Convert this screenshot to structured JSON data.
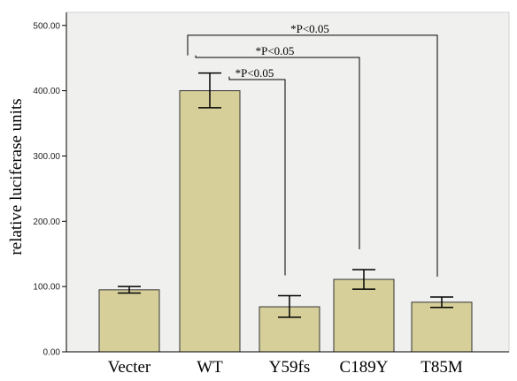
{
  "colors": {
    "plot_bg": "#f0f0ef",
    "bar_fill": "#d6cf9a",
    "bar_stroke": "#333333",
    "axis": "#000000",
    "error_bar": "#000000",
    "bracket": "#000000"
  },
  "chart_data": {
    "type": "bar",
    "title": "",
    "xlabel": "",
    "ylabel": "relative luciferase units",
    "ylim": [
      0,
      520
    ],
    "yticks": [
      0,
      100,
      200,
      300,
      400,
      500
    ],
    "ytick_labels": [
      "0.00",
      "100.00",
      "200.00",
      "300.00",
      "400.00",
      "500.00"
    ],
    "categories": [
      "Vecter",
      "WT",
      "Y59fs",
      "C189Y",
      "T85M"
    ],
    "values": [
      95,
      400,
      69,
      111,
      76
    ],
    "error_low": [
      90,
      374,
      53,
      96,
      68
    ],
    "error_high": [
      100,
      427,
      86,
      126,
      84
    ],
    "grid": false,
    "legend": "none",
    "significance": [
      {
        "from": "WT",
        "to": "T85M",
        "label": "*P<0.05",
        "level": 485
      },
      {
        "from": "WT",
        "to": "C189Y",
        "label": "*P<0.05",
        "level": 451
      },
      {
        "from": "WT",
        "to": "Y59fs",
        "label": "*P<0.05",
        "level": 417
      }
    ]
  }
}
